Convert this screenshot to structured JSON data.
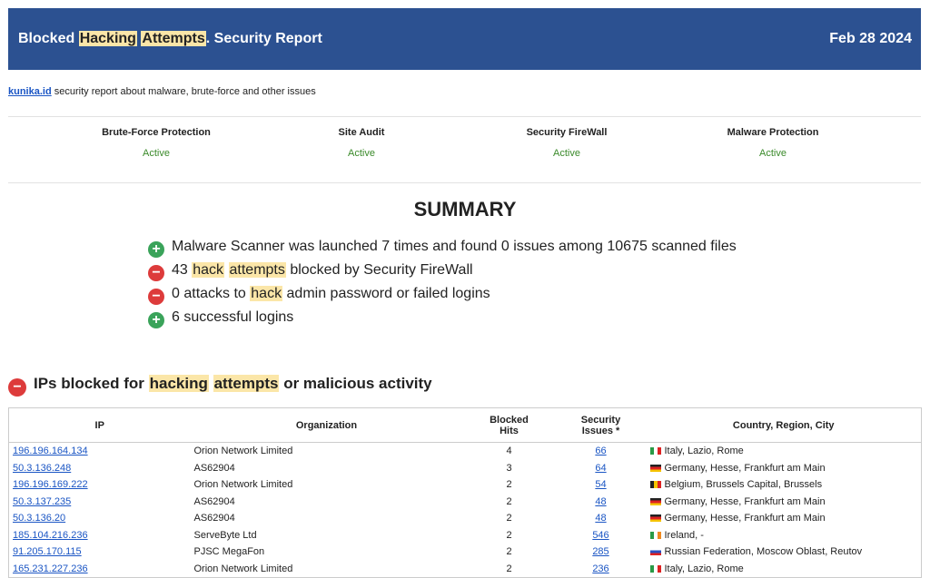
{
  "header": {
    "title": [
      "Blocked",
      "Hacking",
      "Attempts",
      ". Security Report"
    ],
    "date": "Feb 28 2024"
  },
  "intro": {
    "link": "kunika.id",
    "text": "security report about malware, brute-force and other issues"
  },
  "statuses": [
    {
      "name": "Brute-Force Protection",
      "state": "Active"
    },
    {
      "name": "Site Audit",
      "state": "Active"
    },
    {
      "name": "Security FireWall",
      "state": "Active"
    },
    {
      "name": "Malware Protection",
      "state": "Active"
    }
  ],
  "summary": {
    "title": "SUMMARY",
    "lines": [
      [
        "Malware Scanner was launched 7 times and found 0 issues among 10675 scanned files"
      ],
      [
        "43",
        "hack",
        "attempts",
        "blocked by Security FireWall"
      ],
      [
        "0 attacks to",
        "hack",
        "admin password or failed logins"
      ],
      [
        "6 successful logins"
      ]
    ]
  },
  "section": {
    "title": [
      "IPs blocked for",
      "hacking",
      "attempts",
      "or malicious activity"
    ]
  },
  "table": {
    "headers": [
      "IP",
      "Organization",
      "Blocked Hits",
      "Security Issues *",
      "Country, Region, City"
    ],
    "rows": [
      [
        "196.196.164.134",
        "Orion Network Limited",
        4,
        66,
        "Italy, Lazio, Rome"
      ],
      [
        "50.3.136.248",
        "AS62904",
        3,
        64,
        "Germany, Hesse, Frankfurt am Main"
      ],
      [
        "196.196.169.222",
        "Orion Network Limited",
        2,
        54,
        "Belgium, Brussels Capital, Brussels"
      ],
      [
        "50.3.137.235",
        "AS62904",
        2,
        48,
        "Germany, Hesse, Frankfurt am Main"
      ],
      [
        "50.3.136.20",
        "AS62904",
        2,
        48,
        "Germany, Hesse, Frankfurt am Main"
      ],
      [
        "185.104.216.236",
        "ServeByte Ltd",
        2,
        546,
        "Ireland, -"
      ],
      [
        "91.205.170.115",
        "PJSC MegaFon",
        2,
        285,
        "Russian Federation, Moscow Oblast, Reutov"
      ],
      [
        "165.231.227.236",
        "Orion Network Limited",
        2,
        236,
        "Italy, Lazio, Rome"
      ]
    ]
  }
}
